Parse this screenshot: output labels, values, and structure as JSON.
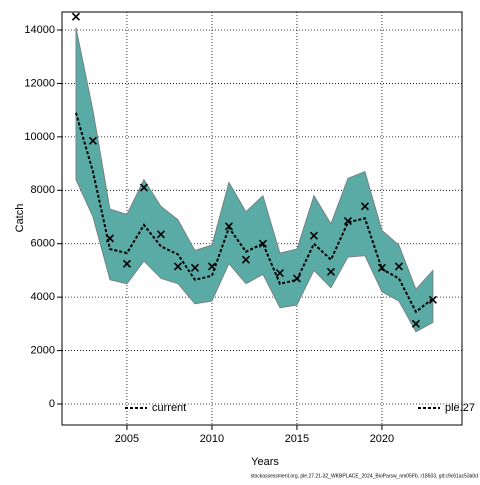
{
  "chart_data": {
    "type": "band-line",
    "x_label": "Years",
    "y_label": "Catch",
    "footer": "stockassessment.org, ple.27.21-32_WKBPLACE_2024_BioParsw_nm05Fb, r18503, git:c9c61ac53a0d",
    "x": [
      2002,
      2003,
      2004,
      2005,
      2006,
      2007,
      2008,
      2009,
      2010,
      2011,
      2012,
      2013,
      2014,
      2015,
      2016,
      2017,
      2018,
      2019,
      2020,
      2021,
      2022,
      2023
    ],
    "estimate": [
      10900,
      8700,
      5800,
      5650,
      6700,
      5900,
      5600,
      4650,
      4800,
      6600,
      5700,
      6000,
      4500,
      4650,
      6000,
      5400,
      6800,
      6950,
      5050,
      4700,
      3450,
      3950
    ],
    "upper": [
      14100,
      11000,
      7300,
      7100,
      8400,
      7400,
      6900,
      5750,
      5950,
      8300,
      7200,
      7800,
      5650,
      5800,
      7800,
      6750,
      8450,
      8700,
      6500,
      5950,
      4300,
      5000
    ],
    "lower": [
      8400,
      7000,
      4650,
      4500,
      5350,
      4700,
      4500,
      3750,
      3850,
      5250,
      4500,
      4850,
      3600,
      3700,
      5000,
      4350,
      5500,
      5550,
      4200,
      3850,
      2700,
      3050
    ],
    "observed": [
      14500,
      9850,
      6200,
      5250,
      8100,
      6350,
      5150,
      5100,
      5150,
      6650,
      5400,
      6000,
      4900,
      4700,
      6300,
      4950,
      6850,
      7400,
      5100,
      5150,
      3000,
      3900
    ],
    "band_color": "#5aaaa5",
    "line_color": "#000000",
    "legend": [
      "current",
      "ple.27"
    ],
    "xlim": [
      2001.18,
      2024.71
    ],
    "xticks": [
      2005,
      2010,
      2015,
      2020
    ],
    "ylim": [
      -786,
      14674
    ],
    "yticks": [
      0,
      2000,
      4000,
      6000,
      8000,
      10000,
      12000,
      14000
    ],
    "grid": true
  }
}
